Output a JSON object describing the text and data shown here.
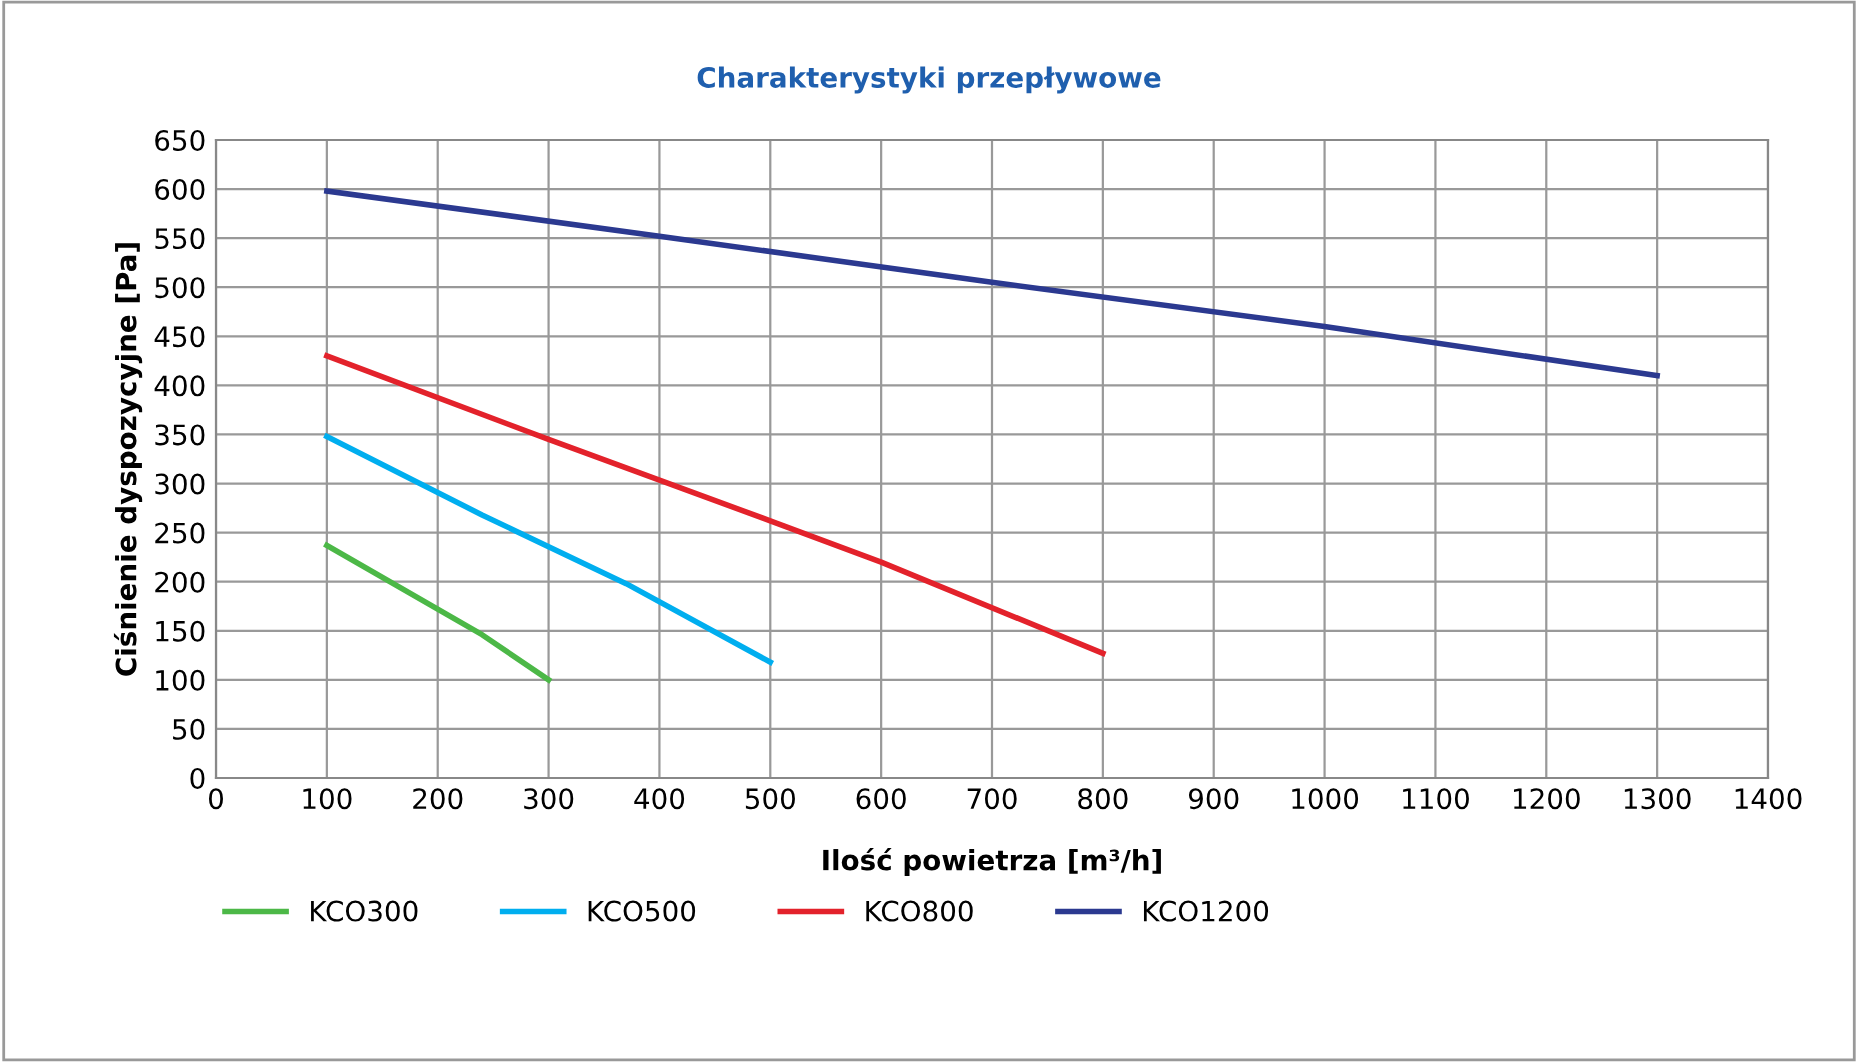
{
  "chart_data": {
    "type": "line",
    "title": "Charakterystyki przepływowe",
    "xlabel": "Ilość powietrza [m³/h]",
    "ylabel": "Ciśnienie dyspozycyjne [Pa]",
    "xlim": [
      0,
      1400
    ],
    "xticks": [
      0,
      100,
      200,
      300,
      400,
      500,
      600,
      700,
      800,
      900,
      1000,
      1100,
      1200,
      1300,
      1400
    ],
    "ylim": [
      0,
      650
    ],
    "yticks": [
      0,
      50,
      100,
      150,
      200,
      250,
      300,
      350,
      400,
      450,
      500,
      550,
      600,
      650
    ],
    "grid": true,
    "legend": "bottom",
    "marker": "none",
    "line_style": "solid",
    "series": [
      {
        "name": "KCO300",
        "color": "#4cb847",
        "x": [
          100,
          240,
          300
        ],
        "values": [
          237,
          146,
          100
        ]
      },
      {
        "name": "KCO500",
        "color": "#00aeef",
        "x": [
          100,
          240,
          370,
          500
        ],
        "values": [
          348,
          268,
          198,
          118
        ]
      },
      {
        "name": "KCO800",
        "color": "#e3222b",
        "x": [
          100,
          300,
          500,
          600,
          800
        ],
        "values": [
          430,
          345,
          262,
          220,
          127
        ]
      },
      {
        "name": "KCO1200",
        "color": "#2b3990",
        "x": [
          100,
          400,
          700,
          1000,
          1300
        ],
        "values": [
          598,
          552,
          505,
          460,
          410
        ]
      }
    ]
  }
}
